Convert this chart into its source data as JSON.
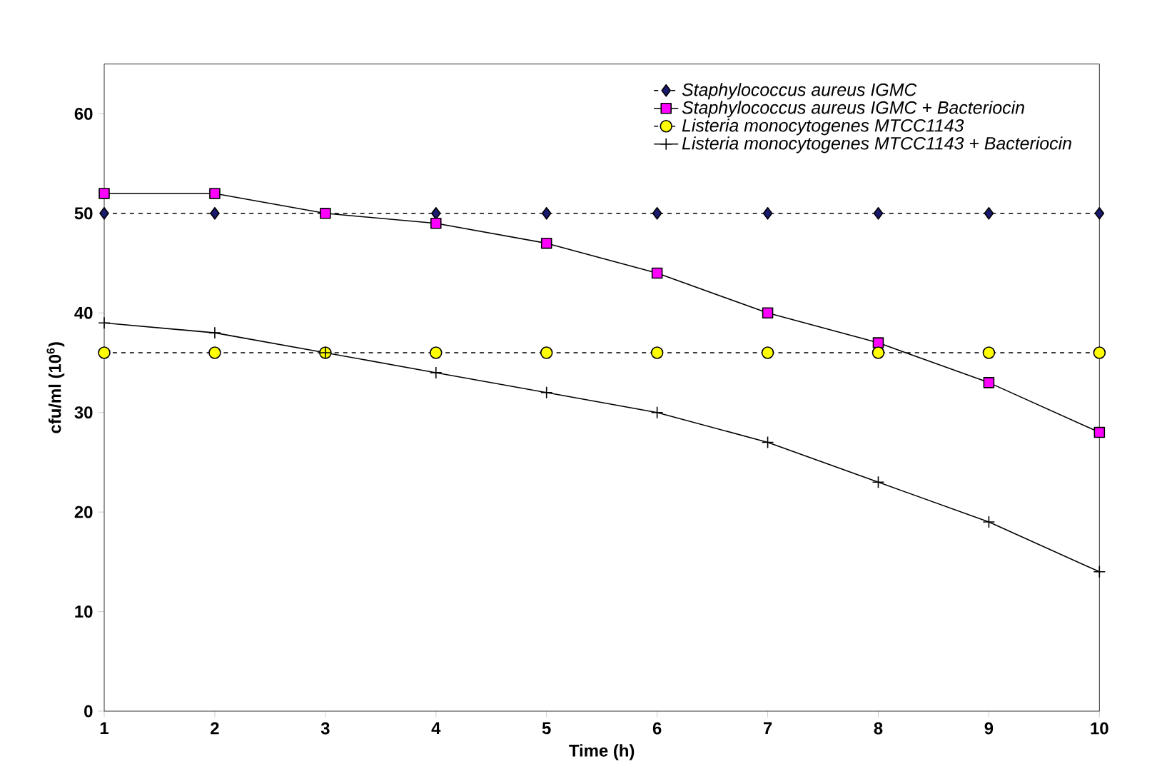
{
  "chart_data": {
    "type": "line",
    "xlabel": "Time (h)",
    "ylabel": "cfu/ml (10$^{6}$)",
    "x": [
      1,
      2,
      3,
      4,
      5,
      6,
      7,
      8,
      9,
      10
    ],
    "xlim": [
      1,
      10
    ],
    "xticks": [
      1,
      2,
      3,
      4,
      5,
      6,
      7,
      8,
      9,
      10
    ],
    "ylim": [
      0,
      65
    ],
    "yticks": [
      0,
      10,
      20,
      30,
      40,
      50,
      60
    ],
    "grid": false,
    "legend": "top right",
    "series": [
      {
        "name": "Staphylococcus aureus IGMC",
        "color": "#1a1a6e",
        "marker": "diamond",
        "line_style": "dashed",
        "values": [
          50,
          50,
          null,
          50,
          50,
          50,
          50,
          50,
          50,
          50
        ]
      },
      {
        "name": "Staphylococcus aureus IGMC  + Bacteriocin",
        "color": "#ff00ff",
        "marker": "square",
        "line_style": "solid",
        "values": [
          52,
          52,
          50,
          49,
          47,
          44,
          40,
          37,
          33,
          28
        ]
      },
      {
        "name": "Listeria monocytogenes MTCC1143",
        "color": "#ffff00",
        "marker": "circle",
        "line_style": "dashed",
        "values": [
          36,
          36,
          36,
          36,
          36,
          36,
          36,
          36,
          36,
          36
        ]
      },
      {
        "name": "Listeria monocytogenes MTCC1143 + Bacteriocin",
        "color": "#000000",
        "marker": "cross",
        "line_style": "solid",
        "values": [
          39,
          38,
          36,
          34,
          32,
          30,
          27,
          23,
          19,
          14
        ]
      }
    ]
  }
}
